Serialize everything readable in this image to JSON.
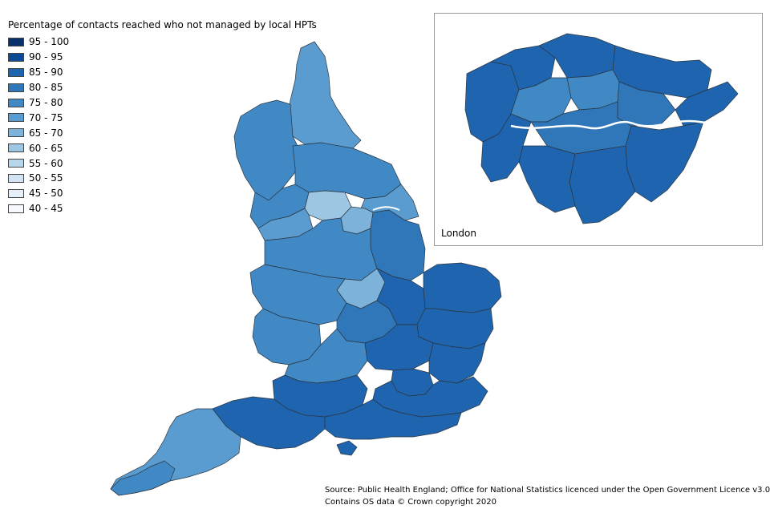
{
  "legend": {
    "title": "Percentage of contacts reached who not managed by local HPTs",
    "items": [
      {
        "label": "95 - 100",
        "color": "#08306b"
      },
      {
        "label": "90 - 95",
        "color": "#0c4a96"
      },
      {
        "label": "85 - 90",
        "color": "#1e64ae"
      },
      {
        "label": "80 - 85",
        "color": "#2f77b8"
      },
      {
        "label": "75 - 80",
        "color": "#4089c4"
      },
      {
        "label": "70 - 75",
        "color": "#5a9ccf"
      },
      {
        "label": "65 - 70",
        "color": "#7db2da"
      },
      {
        "label": "60 - 65",
        "color": "#9cc6e2"
      },
      {
        "label": "55 - 60",
        "color": "#b9d7ec"
      },
      {
        "label": "50 - 55",
        "color": "#d2e4f3"
      },
      {
        "label": "45 - 50",
        "color": "#e5effa"
      },
      {
        "label": "40 - 45",
        "color": "#f6f9fd"
      }
    ]
  },
  "inset": {
    "label": "London"
  },
  "source": {
    "line1": "Source: Public Health England; Office for National Statistics licenced under the Open Government Licence v3.0",
    "line2": "Contains OS data © Crown copyright 2020"
  }
}
